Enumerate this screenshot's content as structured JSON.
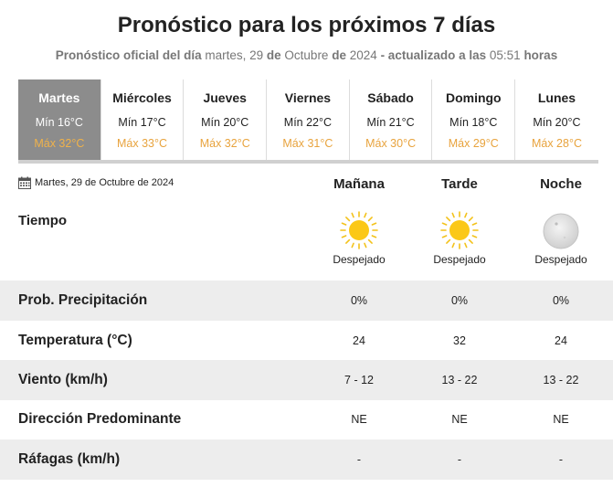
{
  "header": {
    "title": "Pronóstico para los próximos 7 días",
    "subtitle_prefix": "Pronóstico oficial del día",
    "subtitle_day": "martes, 29",
    "subtitle_de1": "de",
    "subtitle_month": "Octubre",
    "subtitle_de2": "de",
    "subtitle_year": "2024",
    "subtitle_updated": "- actualizado a las",
    "subtitle_time": "05:51",
    "subtitle_hours": "horas"
  },
  "days": [
    {
      "name": "Martes",
      "min": "Mín 16°C",
      "max": "Máx 32°C",
      "active": true
    },
    {
      "name": "Miércoles",
      "min": "Mín 17°C",
      "max": "Máx 33°C",
      "active": false
    },
    {
      "name": "Jueves",
      "min": "Mín 20°C",
      "max": "Máx 32°C",
      "active": false
    },
    {
      "name": "Viernes",
      "min": "Mín 22°C",
      "max": "Máx 31°C",
      "active": false
    },
    {
      "name": "Sábado",
      "min": "Mín 21°C",
      "max": "Máx 30°C",
      "active": false
    },
    {
      "name": "Domingo",
      "min": "Mín 18°C",
      "max": "Máx 29°C",
      "active": false
    },
    {
      "name": "Lunes",
      "min": "Mín 20°C",
      "max": "Máx 28°C",
      "active": false
    }
  ],
  "detail": {
    "date": "Martes, 29 de Octubre de 2024",
    "date_icon": "calendar-icon",
    "columns": [
      "Mañana",
      "Tarde",
      "Noche"
    ],
    "tiempo_label": "Tiempo",
    "weather": [
      {
        "icon": "sun-icon",
        "label": "Despejado"
      },
      {
        "icon": "sun-icon",
        "label": "Despejado"
      },
      {
        "icon": "moon-icon",
        "label": "Despejado"
      }
    ],
    "rows": [
      {
        "label": "Prob. Precipitación",
        "values": [
          "0%",
          "0%",
          "0%"
        ]
      },
      {
        "label": "Temperatura (°C)",
        "values": [
          "24",
          "32",
          "24"
        ]
      },
      {
        "label": "Viento (km/h)",
        "values": [
          "7 - 12",
          "13 - 22",
          "13 - 22"
        ]
      },
      {
        "label": "Dirección Predominante",
        "values": [
          "NE",
          "NE",
          "NE"
        ]
      },
      {
        "label": "Ráfagas (km/h)",
        "values": [
          "-",
          "-",
          "-"
        ]
      }
    ]
  },
  "colors": {
    "active_tab": "#8c8c8c",
    "max_temp": "#e8a33d",
    "row_shade": "#ededed"
  }
}
